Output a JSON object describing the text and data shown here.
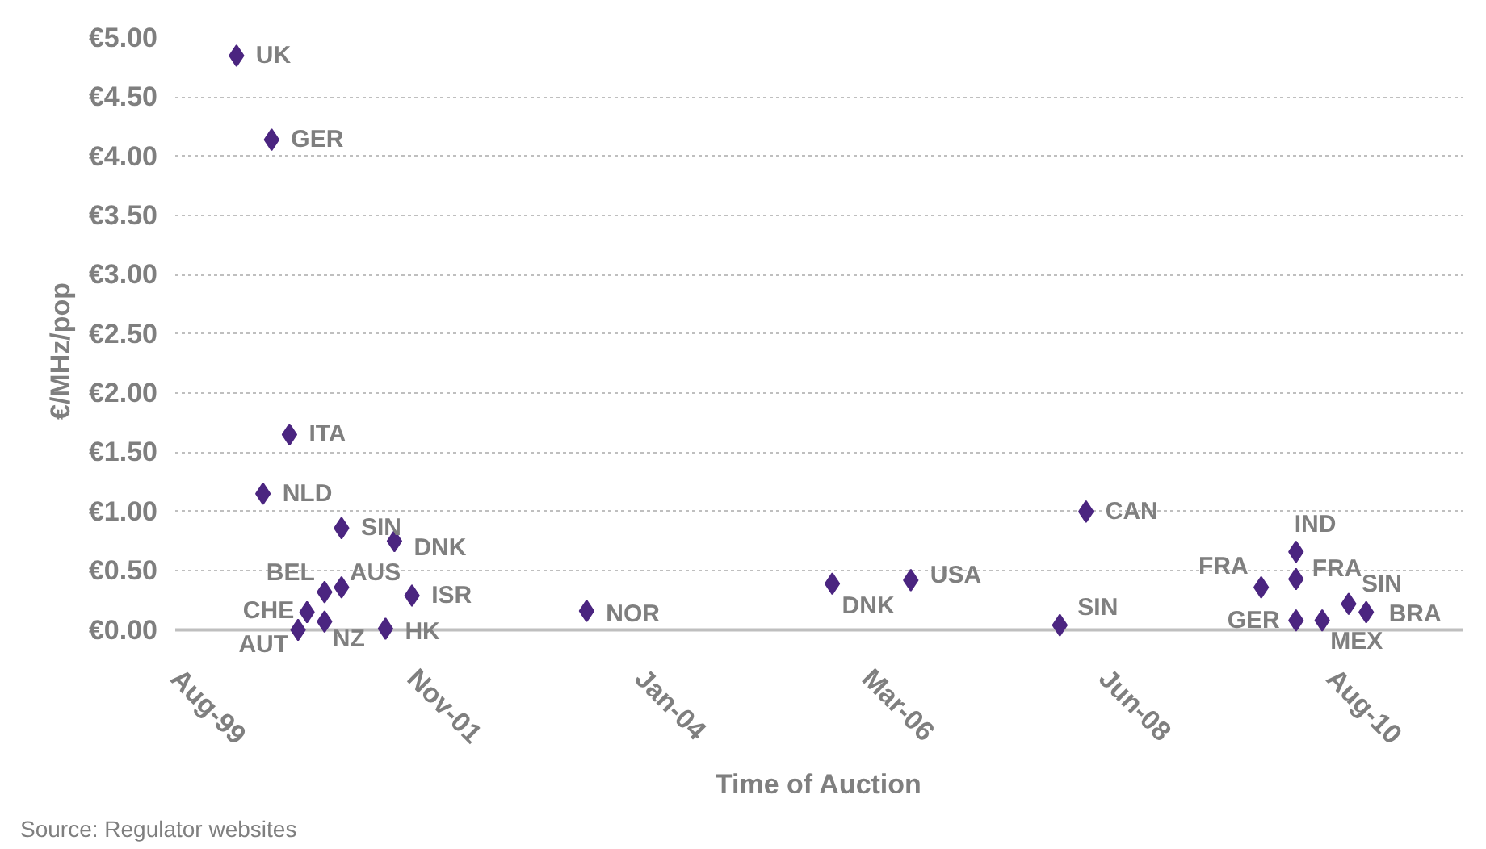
{
  "chart_data": {
    "type": "scatter",
    "xlabel": "Time of Auction",
    "ylabel": "€/MHz/pop",
    "x": [
      "2000-03",
      "2000-07",
      "2000-09",
      "2000-06",
      "2001-03",
      "2001-09",
      "2001-01",
      "2001-03",
      "2001-11",
      "2000-11",
      "2001-01",
      "2000-10",
      "2001-08",
      "2003-07",
      "2005-11",
      "2006-08",
      "2008-01",
      "2008-04",
      "2009-12",
      "2010-04",
      "2010-04",
      "2010-04",
      "2010-07",
      "2010-10",
      "2010-12"
    ],
    "series": [
      {
        "color": "#4b2580",
        "values": [
          4.85,
          4.14,
          1.65,
          1.15,
          0.86,
          0.75,
          0.32,
          0.36,
          0.29,
          0.15,
          0.07,
          0.0,
          0.01,
          0.16,
          0.39,
          0.42,
          0.04,
          1.0,
          0.36,
          0.66,
          0.43,
          0.08,
          0.08,
          0.22,
          0.15
        ]
      }
    ],
    "annotations": [
      {
        "text": "UK",
        "x": "2000-03",
        "y": 4.85
      },
      {
        "text": "GER",
        "x": "2000-07",
        "y": 4.14
      },
      {
        "text": "ITA",
        "x": "2000-09",
        "y": 1.65
      },
      {
        "text": "NLD",
        "x": "2000-06",
        "y": 1.15
      },
      {
        "text": "SIN",
        "x": "2001-03",
        "y": 0.86
      },
      {
        "text": "DNK",
        "x": "2001-09",
        "y": 0.75
      },
      {
        "text": "BEL",
        "x": "2001-01",
        "y": 0.32
      },
      {
        "text": "AUS",
        "x": "2001-03",
        "y": 0.36
      },
      {
        "text": "ISR",
        "x": "2001-11",
        "y": 0.29
      },
      {
        "text": "CHE",
        "x": "2000-11",
        "y": 0.15
      },
      {
        "text": "NZ",
        "x": "2001-01",
        "y": 0.07
      },
      {
        "text": "AUT",
        "x": "2000-10",
        "y": 0.0
      },
      {
        "text": "HK",
        "x": "2001-08",
        "y": 0.01
      },
      {
        "text": "NOR",
        "x": "2003-07",
        "y": 0.16
      },
      {
        "text": "DNK",
        "x": "2005-11",
        "y": 0.39
      },
      {
        "text": "USA",
        "x": "2006-08",
        "y": 0.42
      },
      {
        "text": "SIN",
        "x": "2008-01",
        "y": 0.04
      },
      {
        "text": "CAN",
        "x": "2008-04",
        "y": 1.0
      },
      {
        "text": "FRA",
        "x": "2009-12",
        "y": 0.36
      },
      {
        "text": "IND",
        "x": "2010-04",
        "y": 0.66
      },
      {
        "text": "FRA",
        "x": "2010-04",
        "y": 0.43
      },
      {
        "text": "GER",
        "x": "2010-04",
        "y": 0.08
      },
      {
        "text": "MEX",
        "x": "2010-07",
        "y": 0.08
      },
      {
        "text": "SIN",
        "x": "2010-10",
        "y": 0.22
      },
      {
        "text": "BRA",
        "x": "2010-12",
        "y": 0.15
      },
      "Source: Regulator websites"
    ],
    "xlim": [
      "1999-08-01",
      "2011-11-01"
    ],
    "xticks": [
      {
        "value": "1999-08-01",
        "label": "Aug-99"
      },
      {
        "value": "2001-11-01",
        "label": "Nov-01"
      },
      {
        "value": "2004-01-01",
        "label": "Jan-04"
      },
      {
        "value": "2006-03-01",
        "label": "Mar-06"
      },
      {
        "value": "2008-06-01",
        "label": "Jun-08"
      },
      {
        "value": "2010-08-01",
        "label": "Aug-10"
      }
    ],
    "ylim": [
      0,
      5
    ],
    "yticks": [
      {
        "value": 0,
        "label": "€0.00"
      },
      {
        "value": 0.5,
        "label": "€0.50"
      },
      {
        "value": 1,
        "label": "€1.00"
      },
      {
        "value": 1.5,
        "label": "€1.50"
      },
      {
        "value": 2,
        "label": "€2.00"
      },
      {
        "value": 2.5,
        "label": "€2.50"
      },
      {
        "value": 3,
        "label": "€3.00"
      },
      {
        "value": 3.5,
        "label": "€3.50"
      },
      {
        "value": 4,
        "label": "€4.00"
      },
      {
        "value": 4.5,
        "label": "€4.50"
      },
      {
        "value": 5,
        "label": "€5.00"
      }
    ],
    "grid": "y",
    "marker": "diamond"
  }
}
